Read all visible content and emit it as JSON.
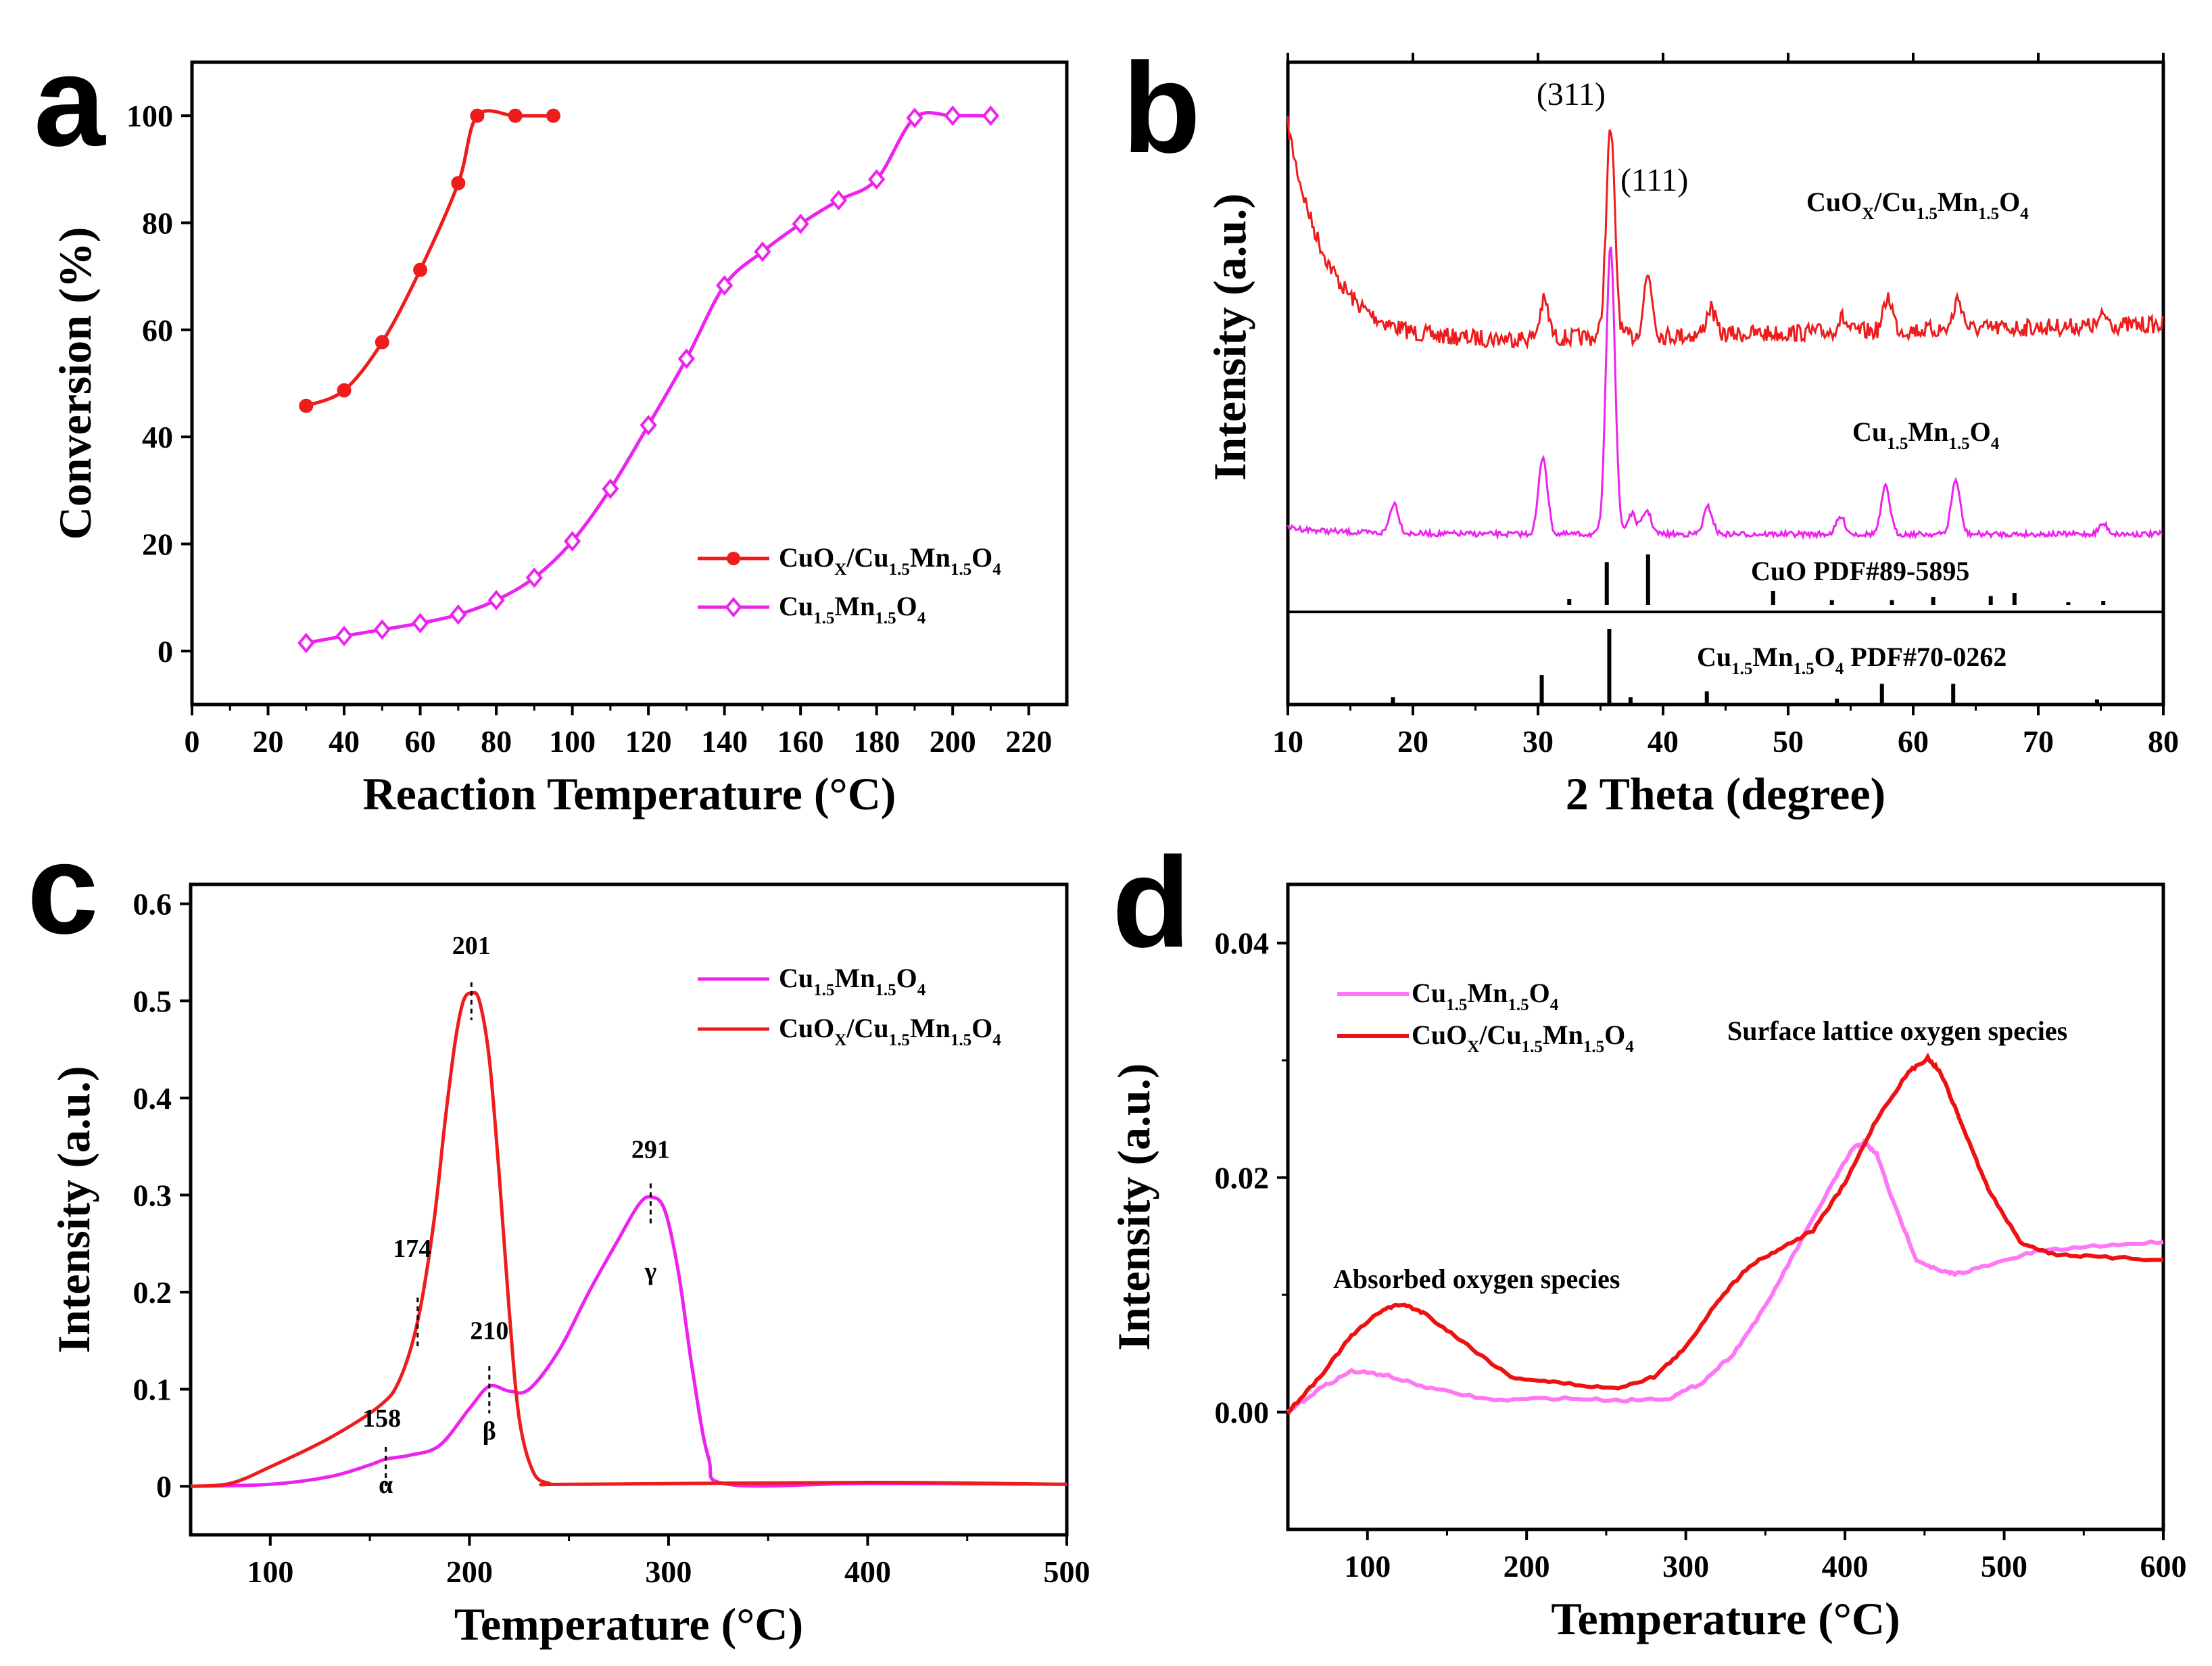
{
  "chart_data": [
    {
      "panel": "a",
      "type": "line",
      "title": "",
      "xlabel": "Reaction Temperature (°C)",
      "ylabel": "Conversion (%)",
      "xlim": [
        0,
        230
      ],
      "ylim": [
        -10,
        110
      ],
      "xticks": [
        0,
        20,
        40,
        60,
        80,
        100,
        120,
        140,
        160,
        180,
        200,
        220
      ],
      "yticks": [
        0,
        20,
        40,
        60,
        80,
        100
      ],
      "legend_position": "bottom-right",
      "series": [
        {
          "name": "CuOX/Cu1.5Mn1.5O4",
          "legend_parts": [
            [
              "CuO",
              ""
            ],
            [
              "X",
              "sub"
            ],
            [
              "/Cu",
              ""
            ],
            [
              "1.5",
              "sub"
            ],
            [
              "Mn",
              ""
            ],
            [
              "1.5",
              "sub"
            ],
            [
              "O",
              ""
            ],
            [
              "4",
              "sub"
            ]
          ],
          "color": "#ee1c1c",
          "marker": "circle",
          "x": [
            30,
            40,
            50,
            60,
            70,
            75,
            85,
            95
          ],
          "y": [
            45.8,
            48.7,
            57.7,
            71.2,
            87.4,
            100,
            100,
            100
          ]
        },
        {
          "name": "Cu1.5Mn1.5O4",
          "legend_parts": [
            [
              "Cu",
              ""
            ],
            [
              "1.5",
              "sub"
            ],
            [
              "Mn",
              ""
            ],
            [
              "1.5",
              "sub"
            ],
            [
              "O",
              ""
            ],
            [
              "4",
              "sub"
            ]
          ],
          "color": "#ee22ee",
          "marker": "diamond",
          "x": [
            30,
            40,
            50,
            60,
            70,
            80,
            90,
            100,
            110,
            120,
            130,
            140,
            150,
            160,
            170,
            180,
            190,
            200,
            210
          ],
          "y": [
            1.5,
            2.8,
            4.0,
            5.2,
            6.8,
            9.5,
            13.7,
            20.5,
            30.3,
            42.2,
            54.6,
            68.3,
            74.6,
            79.8,
            84.2,
            88.1,
            99.6,
            100,
            100
          ]
        }
      ]
    },
    {
      "panel": "b",
      "type": "line",
      "title": "",
      "xlabel": "2 Theta (degree)",
      "ylabel": "Intensity (a.u.)",
      "xlim": [
        10,
        80
      ],
      "xticks": [
        10,
        20,
        30,
        40,
        50,
        60,
        70,
        80
      ],
      "annotations": [
        "(311)",
        "(111)"
      ],
      "series": [
        {
          "name": "CuOX/Cu1.5Mn1.5O4",
          "label_parts": [
            [
              "CuO",
              ""
            ],
            [
              "X",
              "sub"
            ],
            [
              "/Cu",
              ""
            ],
            [
              "1.5",
              "sub"
            ],
            [
              "Mn",
              ""
            ],
            [
              "1.5",
              "sub"
            ],
            [
              "O",
              ""
            ],
            [
              "4",
              "sub"
            ]
          ],
          "color": "#ee1c1c",
          "peaks_2theta": [
            30.5,
            35.8,
            38.8,
            43.8,
            54.3,
            58.0,
            63.6,
            75.3
          ],
          "background": "decaying low-angle hump"
        },
        {
          "name": "Cu1.5Mn1.5O4",
          "label_parts": [
            [
              "Cu",
              ""
            ],
            [
              "1.5",
              "sub"
            ],
            [
              "Mn",
              ""
            ],
            [
              "1.5",
              "sub"
            ],
            [
              "O",
              ""
            ],
            [
              "4",
              "sub"
            ]
          ],
          "color": "#ee22ee",
          "peaks_2theta": [
            18.5,
            30.4,
            35.8,
            37.5,
            38.7,
            43.6,
            54.2,
            57.8,
            63.4,
            75.2
          ]
        }
      ],
      "references": [
        {
          "name": "CuO PDF#89-5895",
          "label_parts": [
            [
              "CuO PDF#89-5895",
              ""
            ]
          ],
          "lines": [
            {
              "pos": 32.5,
              "rel": 0.12
            },
            {
              "pos": 35.5,
              "rel": 0.85
            },
            {
              "pos": 38.8,
              "rel": 1.0
            },
            {
              "pos": 48.8,
              "rel": 0.28
            },
            {
              "pos": 53.5,
              "rel": 0.1
            },
            {
              "pos": 58.3,
              "rel": 0.1
            },
            {
              "pos": 61.6,
              "rel": 0.16
            },
            {
              "pos": 66.2,
              "rel": 0.18
            },
            {
              "pos": 68.1,
              "rel": 0.24
            },
            {
              "pos": 72.4,
              "rel": 0.06
            },
            {
              "pos": 75.2,
              "rel": 0.08
            }
          ]
        },
        {
          "name": "Cu1.5Mn1.5O4 PDF#70-0262",
          "label_parts": [
            [
              "Cu",
              ""
            ],
            [
              "1.5",
              "sub"
            ],
            [
              "Mn",
              ""
            ],
            [
              "1.5",
              "sub"
            ],
            [
              "O",
              ""
            ],
            [
              "4",
              "sub"
            ],
            [
              "  PDF#70-0262",
              ""
            ]
          ],
          "lines": [
            {
              "pos": 18.4,
              "rel": 0.08
            },
            {
              "pos": 30.3,
              "rel": 0.38
            },
            {
              "pos": 35.7,
              "rel": 1.0
            },
            {
              "pos": 37.4,
              "rel": 0.08
            },
            {
              "pos": 43.5,
              "rel": 0.16
            },
            {
              "pos": 53.9,
              "rel": 0.06
            },
            {
              "pos": 57.5,
              "rel": 0.26
            },
            {
              "pos": 63.2,
              "rel": 0.26
            },
            {
              "pos": 74.7,
              "rel": 0.05
            }
          ]
        }
      ]
    },
    {
      "panel": "c",
      "type": "line",
      "title": "",
      "xlabel": "Temperature (°C)",
      "ylabel": "Intensity (a.u.)",
      "xlim": [
        60,
        500
      ],
      "ylim": [
        -0.05,
        0.62
      ],
      "xticks": [
        100,
        200,
        300,
        400,
        500
      ],
      "yticks": [
        0.0,
        0.1,
        0.2,
        0.3,
        0.4,
        0.5,
        0.6
      ],
      "legend_position": "top-right",
      "series": [
        {
          "name": "Cu1.5Mn1.5O4",
          "label_parts": [
            [
              "Cu",
              ""
            ],
            [
              "1.5",
              "sub"
            ],
            [
              "Mn",
              ""
            ],
            [
              "1.5",
              "sub"
            ],
            [
              "O",
              ""
            ],
            [
              "4",
              "sub"
            ]
          ],
          "color": "#ee22ee",
          "x": [
            60,
            100,
            130,
            150,
            158,
            170,
            185,
            200,
            210,
            220,
            230,
            245,
            260,
            275,
            285,
            291,
            298,
            305,
            312,
            320,
            330,
            400,
            500
          ],
          "y": [
            0,
            0.002,
            0.01,
            0.022,
            0.028,
            0.032,
            0.042,
            0.08,
            0.103,
            0.098,
            0.1,
            0.14,
            0.2,
            0.255,
            0.29,
            0.298,
            0.285,
            0.22,
            0.12,
            0.03,
            0.002,
            0.003,
            0.002
          ]
        },
        {
          "name": "CuOX/Cu1.5Mn1.5O4",
          "label_parts": [
            [
              "CuO",
              ""
            ],
            [
              "X",
              "sub"
            ],
            [
              "/Cu",
              ""
            ],
            [
              "1.5",
              "sub"
            ],
            [
              "Mn",
              ""
            ],
            [
              "1.5",
              "sub"
            ],
            [
              "O",
              ""
            ],
            [
              "4",
              "sub"
            ]
          ],
          "color": "#ee1c1c",
          "x": [
            60,
            80,
            100,
            130,
            155,
            165,
            174,
            182,
            188,
            193,
            197,
            201,
            205,
            210,
            215,
            220,
            225,
            232,
            240,
            250,
            400,
            500
          ],
          "y": [
            0,
            0.003,
            0.02,
            0.05,
            0.083,
            0.11,
            0.17,
            0.27,
            0.38,
            0.46,
            0.5,
            0.508,
            0.5,
            0.44,
            0.32,
            0.18,
            0.07,
            0.015,
            0.003,
            0.002,
            0.004,
            0.002
          ]
        }
      ],
      "peak_labels": [
        {
          "text": "201",
          "x": 201,
          "y": 0.508
        },
        {
          "text": "174",
          "x": 174,
          "y": 0.17
        },
        {
          "text": "210",
          "x": 210,
          "y": 0.103
        },
        {
          "text": "158",
          "x": 158,
          "y": 0.028
        },
        {
          "text": "291",
          "x": 291,
          "y": 0.298
        }
      ],
      "greek_labels": [
        {
          "text": "α",
          "x": 158,
          "y": 0.0
        },
        {
          "text": "β",
          "x": 210,
          "y": 0.055
        },
        {
          "text": "γ",
          "x": 291,
          "y": 0.22
        }
      ]
    },
    {
      "panel": "d",
      "type": "line",
      "title": "",
      "xlabel": "Temperature (°C)",
      "ylabel": "Intensity (a.u.)",
      "xlim": [
        50,
        600
      ],
      "ylim": [
        -0.01,
        0.045
      ],
      "xticks": [
        100,
        200,
        300,
        400,
        500,
        600
      ],
      "yticks": [
        0.0,
        0.02,
        0.04
      ],
      "ytick_labels": [
        "0.00",
        "0.02",
        "0.04"
      ],
      "legend_position": "top-left",
      "annotations": [
        "Absorbed oxygen species",
        "Surface lattice oxygen species"
      ],
      "series": [
        {
          "name": "Cu1.5Mn1.5O4",
          "label_parts": [
            [
              "Cu",
              ""
            ],
            [
              "1.5",
              "sub"
            ],
            [
              "Mn",
              ""
            ],
            [
              "1.5",
              "sub"
            ],
            [
              "O",
              ""
            ],
            [
              "4",
              "sub"
            ]
          ],
          "color": "#ff77f5",
          "x": [
            50,
            70,
            90,
            110,
            140,
            180,
            220,
            260,
            290,
            310,
            330,
            350,
            370,
            390,
            405,
            412,
            420,
            430,
            445,
            460,
            470,
            490,
            520,
            560,
            600
          ],
          "y": [
            0,
            0.002,
            0.0035,
            0.0032,
            0.002,
            0.001,
            0.0012,
            0.001,
            0.0012,
            0.0025,
            0.005,
            0.009,
            0.014,
            0.019,
            0.0225,
            0.023,
            0.022,
            0.018,
            0.013,
            0.012,
            0.0118,
            0.0125,
            0.0137,
            0.0142,
            0.0145
          ]
        },
        {
          "name": "CuOX/Cu1.5Mn1.5O4",
          "label_parts": [
            [
              "CuO",
              ""
            ],
            [
              "X",
              "sub"
            ],
            [
              "/Cu",
              ""
            ],
            [
              "1.5",
              "sub"
            ],
            [
              "Mn",
              ""
            ],
            [
              "1.5",
              "sub"
            ],
            [
              "O",
              ""
            ],
            [
              "4",
              "sub"
            ]
          ],
          "color": "#ee1111",
          "x": [
            50,
            70,
            90,
            110,
            122,
            135,
            160,
            190,
            220,
            255,
            280,
            300,
            320,
            340,
            360,
            380,
            400,
            420,
            440,
            452,
            460,
            475,
            490,
            510,
            530,
            560,
            600
          ],
          "y": [
            0,
            0.003,
            0.0065,
            0.0088,
            0.0092,
            0.0085,
            0.006,
            0.003,
            0.0025,
            0.002,
            0.003,
            0.0055,
            0.0095,
            0.0125,
            0.014,
            0.0155,
            0.0195,
            0.025,
            0.029,
            0.0302,
            0.029,
            0.024,
            0.019,
            0.0145,
            0.0135,
            0.0132,
            0.013
          ]
        }
      ]
    }
  ]
}
